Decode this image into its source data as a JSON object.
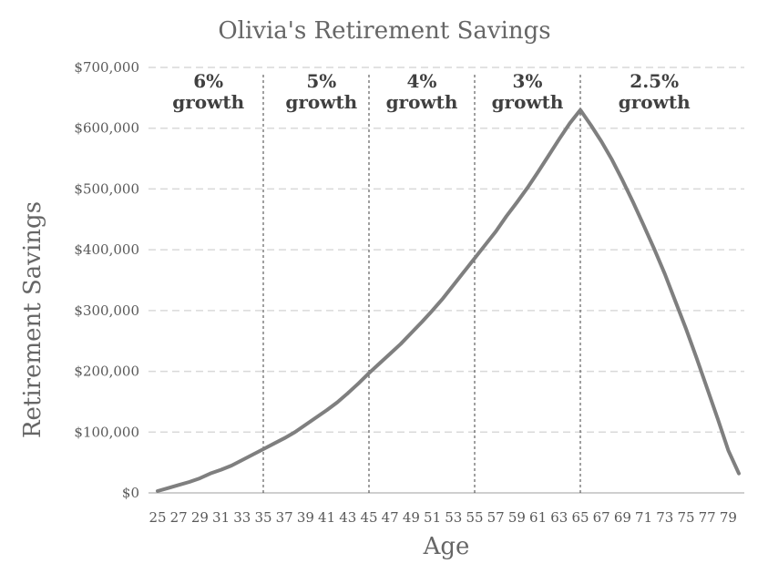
{
  "chart_data": {
    "type": "line",
    "title": "Olivia's Retirement Savings",
    "xlabel": "Age",
    "ylabel": "Retirement Savings",
    "ylim": [
      0,
      700000
    ],
    "y_tick_values": [
      0,
      100000,
      200000,
      300000,
      400000,
      500000,
      600000,
      700000
    ],
    "y_tick_labels": [
      "$0",
      "$100,000",
      "$200,000",
      "$300,000",
      "$400,000",
      "$500,000",
      "$600,000",
      "$700,000"
    ],
    "x_tick_labels": [
      "25",
      "27",
      "29",
      "31",
      "33",
      "35",
      "37",
      "39",
      "41",
      "43",
      "45",
      "47",
      "49",
      "51",
      "53",
      "55",
      "57",
      "59",
      "61",
      "63",
      "65",
      "67",
      "69",
      "71",
      "73",
      "75",
      "77",
      "79"
    ],
    "grid": "horizontal-dashed",
    "colors": {
      "line": "#7f7f7f",
      "gridline": "#d9d9d9",
      "axis": "#bfbfbf",
      "divider": "#404040"
    },
    "series": [
      {
        "name": "Retirement Savings",
        "x": [
          25,
          26,
          27,
          28,
          29,
          30,
          31,
          32,
          33,
          34,
          35,
          36,
          37,
          38,
          39,
          40,
          41,
          42,
          43,
          44,
          45,
          46,
          47,
          48,
          49,
          50,
          51,
          52,
          53,
          54,
          55,
          56,
          57,
          58,
          59,
          60,
          61,
          62,
          63,
          64,
          65,
          66,
          67,
          68,
          69,
          70,
          71,
          72,
          73,
          74,
          75,
          76,
          77,
          78,
          79,
          80
        ],
        "values": [
          3000,
          8000,
          13000,
          18000,
          24000,
          32000,
          38000,
          45000,
          54000,
          63000,
          72000,
          81000,
          90000,
          100000,
          112000,
          124000,
          136000,
          149000,
          164000,
          180000,
          197000,
          213000,
          229000,
          245000,
          263000,
          281000,
          300000,
          320000,
          342000,
          364000,
          386000,
          408000,
          430000,
          455000,
          478000,
          502000,
          528000,
          555000,
          582000,
          608000,
          630000,
          605000,
          578000,
          548000,
          514000,
          478000,
          440000,
          401000,
          360000,
          315000,
          270000,
          222000,
          172000,
          122000,
          70000,
          32000
        ]
      }
    ],
    "phase_dividers": [
      35,
      45,
      55,
      65
    ],
    "phases": [
      {
        "rate": "6%",
        "label": "growth",
        "center_age": 29.8
      },
      {
        "rate": "5%",
        "label": "growth",
        "center_age": 40.5
      },
      {
        "rate": "4%",
        "label": "growth",
        "center_age": 50
      },
      {
        "rate": "3%",
        "label": "growth",
        "center_age": 60
      },
      {
        "rate": "2.5%",
        "label": "growth",
        "center_age": 72
      }
    ]
  }
}
